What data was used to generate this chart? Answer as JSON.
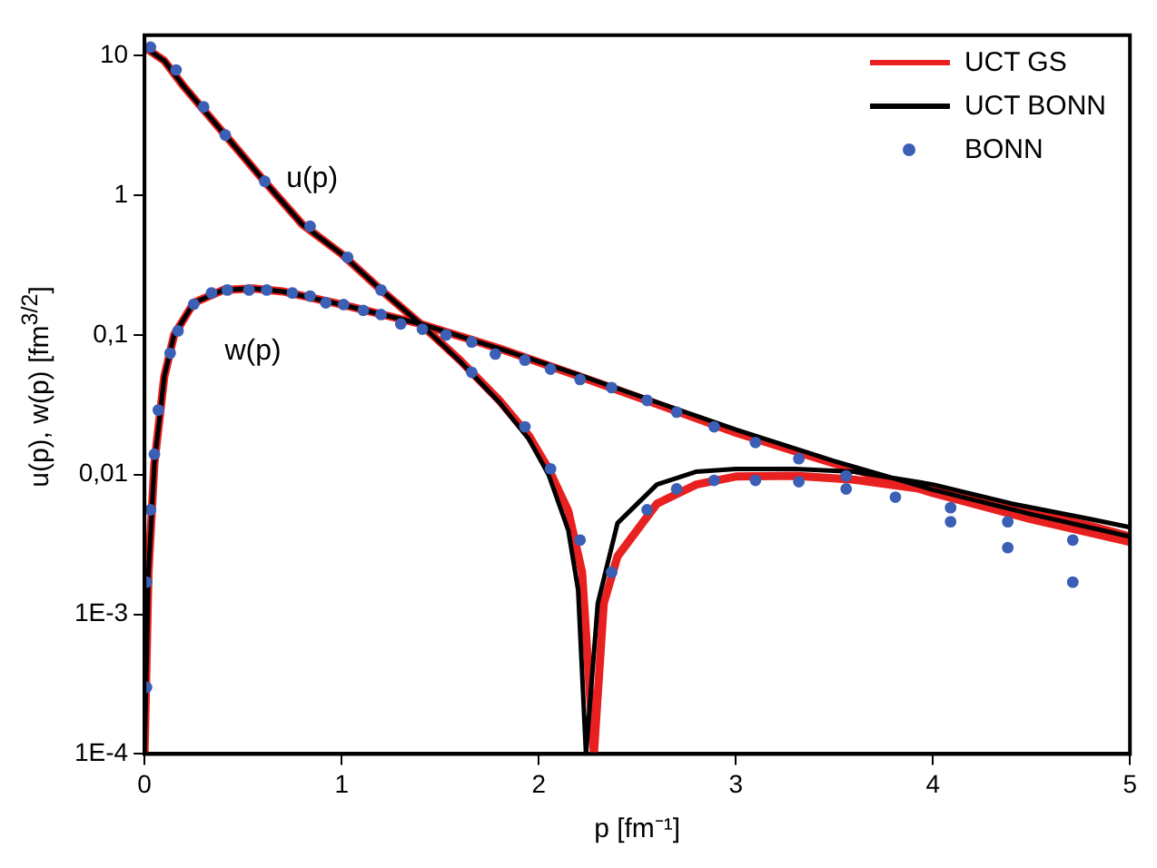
{
  "chart_data": {
    "type": "line",
    "xlabel": "p [fm⁻¹]",
    "ylabel": "u(p), w(p) [fm$^{3/2}$]",
    "xlim": [
      0,
      5
    ],
    "xticks": [
      0,
      1,
      2,
      3,
      4,
      5
    ],
    "ylim": [
      0.0001,
      14
    ],
    "yticks": [
      {
        "value": 0.0001,
        "label": "1E-4"
      },
      {
        "value": 0.001,
        "label": "1E-3"
      },
      {
        "value": 0.01,
        "label": "0,01"
      },
      {
        "value": 0.1,
        "label": "0,1"
      },
      {
        "value": 1,
        "label": "1"
      },
      {
        "value": 10,
        "label": "10"
      }
    ],
    "log": "y",
    "legend": "top right",
    "annotations": [
      "u(p)",
      "w(p)"
    ],
    "series": [
      {
        "name": "UCT GS",
        "color": "#e8201f",
        "x": [
          0,
          0.1,
          0.2,
          0.4,
          0.6,
          0.8,
          1.0,
          1.2,
          1.4,
          1.6,
          1.8,
          1.95,
          2.05,
          2.15,
          2.22,
          2.28,
          2.33,
          2.4,
          2.6,
          2.8,
          3.0,
          3.3,
          3.6,
          4.0,
          4.4,
          4.8,
          5.0,
          null,
          0,
          0.02,
          0.05,
          0.1,
          0.15,
          0.25,
          0.4,
          0.55,
          0.7,
          1.0,
          1.4,
          1.8,
          2.2,
          2.6,
          3.0,
          3.5,
          4.0,
          4.5,
          5.0
        ],
        "values": [
          11.5,
          9.2,
          6.0,
          2.8,
          1.3,
          0.62,
          0.38,
          0.21,
          0.12,
          0.066,
          0.034,
          0.019,
          0.011,
          0.0055,
          0.002,
          0.0001,
          0.0012,
          0.0026,
          0.0062,
          0.0085,
          0.0097,
          0.0098,
          0.0092,
          0.0077,
          0.0058,
          0.0043,
          0.0036,
          null,
          0.0001,
          0.002,
          0.012,
          0.05,
          0.1,
          0.17,
          0.21,
          0.215,
          0.205,
          0.165,
          0.12,
          0.08,
          0.051,
          0.032,
          0.02,
          0.012,
          0.0074,
          0.0048,
          0.0033
        ]
      },
      {
        "name": "UCT BONN",
        "color": "#000000",
        "x": [
          0,
          0.1,
          0.2,
          0.4,
          0.6,
          0.8,
          1.0,
          1.2,
          1.4,
          1.6,
          1.8,
          1.95,
          2.05,
          2.15,
          2.2,
          2.24,
          2.3,
          2.4,
          2.6,
          2.8,
          3.0,
          3.3,
          3.6,
          4.0,
          4.4,
          4.8,
          5.0,
          null,
          0,
          0.02,
          0.05,
          0.1,
          0.15,
          0.25,
          0.4,
          0.55,
          0.7,
          1.0,
          1.4,
          1.8,
          2.2,
          2.6,
          3.0,
          3.5,
          4.0,
          4.5,
          5.0
        ],
        "values": [
          11.5,
          9.2,
          6.0,
          2.8,
          1.3,
          0.62,
          0.38,
          0.21,
          0.12,
          0.065,
          0.033,
          0.018,
          0.01,
          0.004,
          0.0015,
          0.0001,
          0.0012,
          0.0045,
          0.0085,
          0.0105,
          0.011,
          0.011,
          0.0105,
          0.0085,
          0.0062,
          0.0048,
          0.0042,
          null,
          0.0001,
          0.002,
          0.012,
          0.05,
          0.1,
          0.17,
          0.21,
          0.215,
          0.205,
          0.165,
          0.12,
          0.08,
          0.052,
          0.033,
          0.021,
          0.0125,
          0.0078,
          0.0052,
          0.0036
        ]
      },
      {
        "name": "BONN",
        "type": "scatter",
        "marker": "circle",
        "color": "#3a5fb5",
        "x": [
          0.03,
          0.16,
          0.3,
          0.41,
          0.61,
          0.84,
          1.03,
          1.2,
          1.41,
          1.66,
          1.93,
          2.06,
          2.21,
          2.37,
          2.55,
          2.7,
          2.89,
          3.1,
          3.32,
          3.56,
          3.81,
          4.09,
          4.38,
          4.71,
          0.01,
          0.01,
          0.03,
          0.05,
          0.07,
          0.13,
          0.17,
          0.25,
          0.34,
          0.42,
          0.53,
          0.62,
          0.75,
          0.84,
          0.92,
          1.01,
          1.11,
          1.2,
          1.3,
          1.53,
          1.66,
          1.78,
          1.93,
          2.06,
          2.21,
          2.37,
          2.55,
          2.7,
          2.89,
          3.1,
          3.32,
          3.56,
          4.09,
          4.38,
          4.71
        ],
        "values": [
          11.5,
          7.9,
          4.3,
          2.7,
          1.26,
          0.6,
          0.36,
          0.21,
          0.11,
          0.054,
          0.022,
          0.011,
          0.0034,
          0.002,
          0.0056,
          0.0079,
          0.0091,
          0.0091,
          0.0089,
          0.0079,
          0.0069,
          0.0046,
          0.003,
          0.0017,
          0.0003,
          0.0017,
          0.0056,
          0.014,
          0.029,
          0.074,
          0.107,
          0.166,
          0.2,
          0.21,
          0.21,
          0.21,
          0.2,
          0.19,
          0.17,
          0.165,
          0.15,
          0.14,
          0.12,
          0.1,
          0.089,
          0.073,
          0.066,
          0.057,
          0.048,
          0.042,
          0.034,
          0.028,
          0.022,
          0.017,
          0.013,
          0.0098,
          0.0058,
          0.0046,
          0.0034
        ]
      }
    ]
  }
}
